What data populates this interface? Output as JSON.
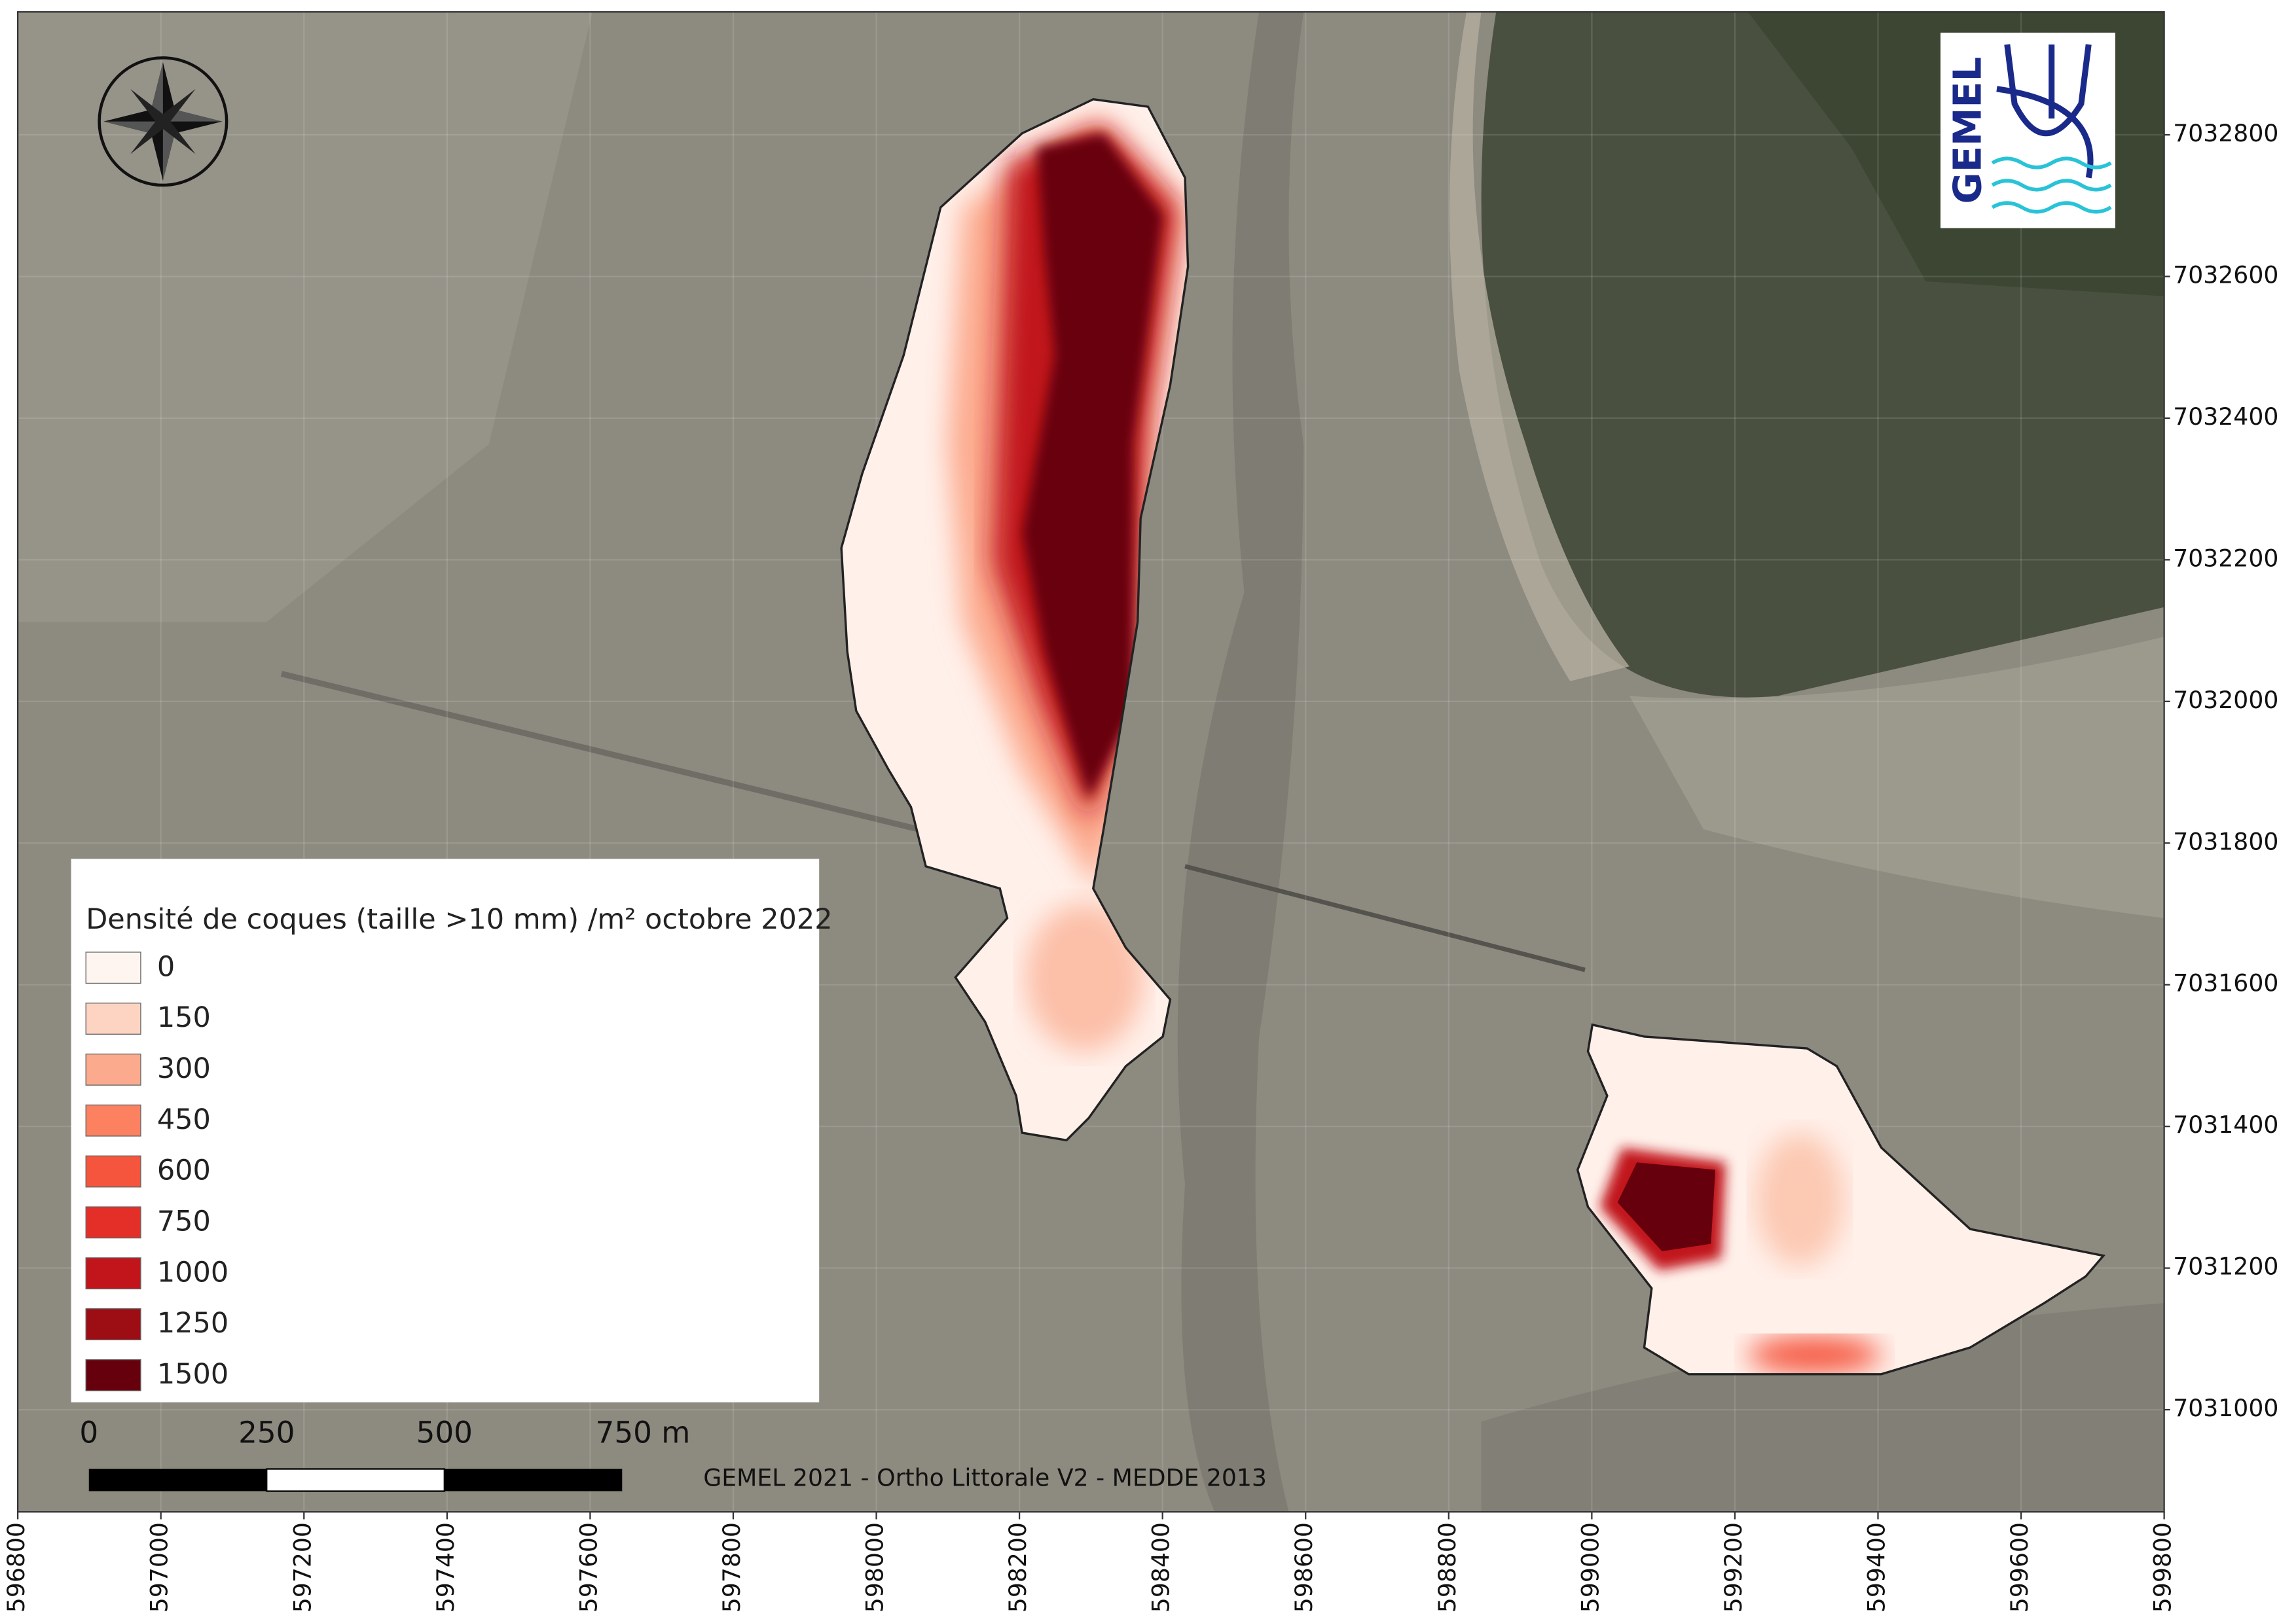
{
  "legend": {
    "title": "Densité de coques (taille >10 mm) /m² octobre 2022",
    "items": [
      {
        "value": 0,
        "color": "#fff5f0"
      },
      {
        "value": 150,
        "color": "#fdd4c2"
      },
      {
        "value": 300,
        "color": "#fcaa8e"
      },
      {
        "value": 450,
        "color": "#fc8161"
      },
      {
        "value": 600,
        "color": "#f5553c"
      },
      {
        "value": 750,
        "color": "#e32f27"
      },
      {
        "value": 1000,
        "color": "#c1151b"
      },
      {
        "value": 1250,
        "color": "#9d0d14"
      },
      {
        "value": 1500,
        "color": "#67000d"
      }
    ]
  },
  "scale_bar": {
    "labels": [
      "0",
      "250",
      "500",
      "750 m"
    ]
  },
  "credit": "GEMEL 2021 - Ortho Littorale V2 - MEDDE 2013",
  "logo": {
    "text": "GEMEL"
  },
  "x_ticks": [
    596800,
    597000,
    597200,
    597400,
    597600,
    597800,
    598000,
    598200,
    598400,
    598600,
    598800,
    599000,
    599200,
    599400,
    599600,
    599800
  ],
  "y_ticks": [
    7031000,
    7031200,
    7031400,
    7031600,
    7031800,
    7032000,
    7032200,
    7032400,
    7032600,
    7032800
  ]
}
